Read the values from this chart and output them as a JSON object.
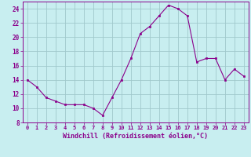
{
  "x": [
    0,
    1,
    2,
    3,
    4,
    5,
    6,
    7,
    8,
    9,
    10,
    11,
    12,
    13,
    14,
    15,
    16,
    17,
    18,
    19,
    20,
    21,
    22,
    23
  ],
  "y": [
    14,
    13,
    11.5,
    11,
    10.5,
    10.5,
    10.5,
    10,
    9,
    11.5,
    14,
    17,
    20.5,
    21.5,
    23,
    24.5,
    24,
    23,
    16.5,
    17,
    17,
    14,
    15.5,
    14.5
  ],
  "line_color": "#8b008b",
  "marker_color": "#8b008b",
  "bg_color": "#c8eef0",
  "grid_color": "#a0c8cc",
  "xlabel": "Windchill (Refroidissement éolien,°C)",
  "ylim": [
    8,
    25
  ],
  "xlim": [
    -0.5,
    23.5
  ],
  "yticks": [
    8,
    10,
    12,
    14,
    16,
    18,
    20,
    22,
    24
  ],
  "xticks": [
    0,
    1,
    2,
    3,
    4,
    5,
    6,
    7,
    8,
    9,
    10,
    11,
    12,
    13,
    14,
    15,
    16,
    17,
    18,
    19,
    20,
    21,
    22,
    23
  ],
  "xlabel_fontsize": 6.0,
  "xtick_fontsize": 5.0,
  "ytick_fontsize": 5.5,
  "label_color": "#8b008b",
  "tick_color": "#8b008b",
  "spine_color": "#8b008b",
  "linewidth": 0.8,
  "markersize": 2.0
}
